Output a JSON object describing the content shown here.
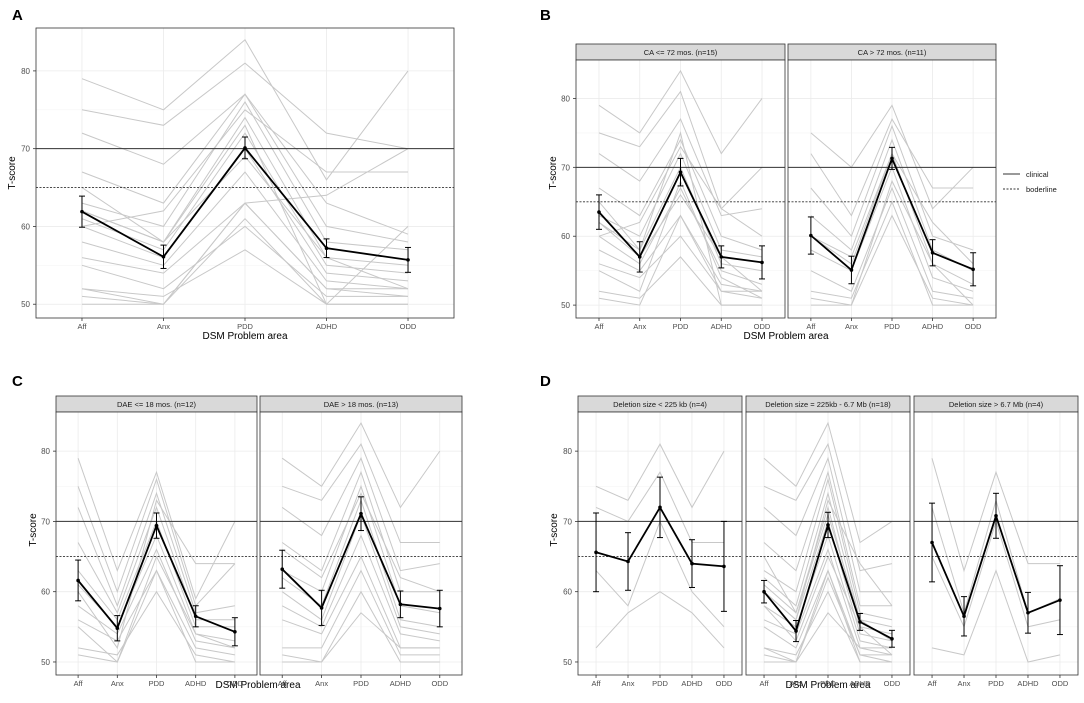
{
  "figure": {
    "x_categories": [
      "Aff",
      "Anx",
      "PDD",
      "ADHD",
      "ODD"
    ],
    "xlabel": "DSM Problem area",
    "ylabel": "T-score",
    "y_ticks": [
      50,
      60,
      70,
      80
    ],
    "ylim": [
      49,
      85
    ],
    "reference_lines": [
      {
        "name": "clinical",
        "y": 70,
        "style": "solid"
      },
      {
        "name": "boderline",
        "y": 65,
        "style": "dotted"
      }
    ],
    "legend": {
      "position": "right",
      "items": [
        "clinical",
        "boderline"
      ]
    },
    "colors": {
      "individual": "#c8c8c8",
      "mean": "#000000",
      "strip": "#d9d9d9",
      "grid": "#ebebeb"
    }
  },
  "chart_data": [
    {
      "panel": "A",
      "type": "line",
      "facets": [
        {
          "title": "",
          "mean": [
            61.9,
            56.1,
            70.1,
            57.2,
            55.7
          ],
          "error": [
            2.0,
            1.5,
            1.4,
            1.2,
            1.6
          ],
          "individuals": [
            [
              79,
              75,
              84,
              66,
              80
            ],
            [
              75,
              73,
              81,
              72,
              70
            ],
            [
              72,
              68,
              77,
              63,
              59
            ],
            [
              67,
              63,
              77,
              60,
              58
            ],
            [
              63,
              60,
              76,
              58,
              57
            ],
            [
              62,
              58,
              74,
              56,
              55
            ],
            [
              61,
              57,
              72,
              55,
              54
            ],
            [
              60,
              56,
              70,
              54,
              53
            ],
            [
              58,
              55,
              67,
              53,
              52
            ],
            [
              56,
              54,
              63,
              52,
              51
            ],
            [
              55,
              52,
              60,
              51,
              51
            ],
            [
              52,
              51,
              57,
              50,
              50
            ],
            [
              50,
              50,
              63,
              52,
              52
            ],
            [
              60,
              62,
              75,
              67,
              67
            ],
            [
              51,
              50,
              63,
              64,
              70
            ],
            [
              65,
              58,
              73,
              50,
              60
            ],
            [
              52,
              50,
              61,
              50,
              50
            ],
            [
              62,
              58,
              69,
              56,
              52
            ]
          ]
        }
      ]
    },
    {
      "panel": "B",
      "type": "line",
      "facets": [
        {
          "title": "CA <= 72 mos. (n=15)",
          "mean": [
            63.5,
            57.0,
            69.3,
            57.0,
            56.2
          ],
          "error": [
            2.5,
            2.2,
            2.0,
            1.6,
            2.4
          ],
          "individuals": [
            [
              79,
              75,
              84,
              72,
              80
            ],
            [
              75,
              73,
              81,
              64,
              70
            ],
            [
              72,
              68,
              77,
              63,
              64
            ],
            [
              67,
              63,
              74,
              60,
              58
            ],
            [
              63,
              60,
              72,
              58,
              57
            ],
            [
              62,
              58,
              70,
              56,
              55
            ],
            [
              60,
              56,
              67,
              55,
              53
            ],
            [
              58,
              55,
              63,
              53,
              52
            ],
            [
              56,
              54,
              60,
              52,
              51
            ],
            [
              52,
              51,
              57,
              50,
              50
            ],
            [
              51,
              50,
              63,
              52,
              52
            ],
            [
              65,
              58,
              75,
              50,
              50
            ],
            [
              60,
              62,
              73,
              64,
              60
            ],
            [
              55,
              52,
              68,
              54,
              51
            ],
            [
              62,
              57,
              66,
              57,
              52
            ]
          ]
        },
        {
          "title": "CA > 72 mos. (n=11)",
          "mean": [
            60.1,
            55.1,
            71.3,
            57.6,
            55.2
          ],
          "error": [
            2.7,
            2.0,
            1.6,
            1.9,
            2.4
          ],
          "individuals": [
            [
              75,
              70,
              79,
              64,
              70
            ],
            [
              72,
              63,
              77,
              67,
              67
            ],
            [
              67,
              60,
              76,
              60,
              58
            ],
            [
              63,
              58,
              74,
              58,
              55
            ],
            [
              60,
              56,
              72,
              56,
              53
            ],
            [
              58,
              55,
              70,
              54,
              52
            ],
            [
              55,
              52,
              67,
              52,
              51
            ],
            [
              52,
              51,
              65,
              50,
              50
            ],
            [
              51,
              50,
              63,
              51,
              50
            ],
            [
              60,
              57,
              72,
              62,
              56
            ],
            [
              50,
              50,
              68,
              56,
              50
            ]
          ]
        }
      ]
    },
    {
      "panel": "C",
      "type": "line",
      "facets": [
        {
          "title": "DAE <= 18 mos. (n=12)",
          "mean": [
            61.6,
            54.8,
            69.4,
            56.5,
            54.3
          ],
          "error": [
            2.9,
            1.8,
            1.8,
            1.5,
            2.0
          ],
          "individuals": [
            [
              79,
              63,
              77,
              59,
              70
            ],
            [
              75,
              60,
              76,
              58,
              64
            ],
            [
              72,
              58,
              74,
              57,
              58
            ],
            [
              67,
              57,
              72,
              56,
              56
            ],
            [
              63,
              56,
              70,
              55,
              55
            ],
            [
              61,
              55,
              68,
              54,
              53
            ],
            [
              58,
              54,
              66,
              53,
              52
            ],
            [
              56,
              53,
              63,
              52,
              51
            ],
            [
              52,
              51,
              60,
              51,
              50
            ],
            [
              51,
              50,
              63,
              50,
              50
            ],
            [
              60,
              52,
              73,
              64,
              64
            ],
            [
              55,
              50,
              65,
              54,
              52
            ]
          ]
        },
        {
          "title": "DAE > 18 mos. (n=13)",
          "mean": [
            63.2,
            57.7,
            71.1,
            58.2,
            57.6
          ],
          "error": [
            2.7,
            2.5,
            2.4,
            1.9,
            2.6
          ],
          "individuals": [
            [
              79,
              75,
              84,
              72,
              80
            ],
            [
              75,
              73,
              81,
              67,
              67
            ],
            [
              72,
              68,
              79,
              63,
              64
            ],
            [
              67,
              63,
              77,
              60,
              60
            ],
            [
              63,
              60,
              75,
              58,
              57
            ],
            [
              62,
              58,
              73,
              56,
              55
            ],
            [
              60,
              56,
              71,
              55,
              54
            ],
            [
              58,
              55,
              68,
              54,
              53
            ],
            [
              56,
              54,
              65,
              52,
              52
            ],
            [
              52,
              52,
              63,
              51,
              51
            ],
            [
              51,
              50,
              60,
              50,
              50
            ],
            [
              50,
              50,
              57,
              52,
              52
            ],
            [
              66,
              62,
              74,
              62,
              60
            ]
          ]
        }
      ]
    },
    {
      "panel": "D",
      "type": "line",
      "facets": [
        {
          "title": "Deletion size < 225 kb (n=4)",
          "mean": [
            65.6,
            64.3,
            72.0,
            64.0,
            63.6
          ],
          "error": [
            5.6,
            4.1,
            4.3,
            3.4,
            6.4
          ],
          "individuals": [
            [
              75,
              73,
              81,
              72,
              80
            ],
            [
              72,
              70,
              77,
              67,
              67
            ],
            [
              63,
              58,
              70,
              60,
              55
            ],
            [
              52,
              57,
              60,
              57,
              52
            ]
          ]
        },
        {
          "title": "Deletion size = 225kb - 6.7 Mb (n=18)",
          "mean": [
            60.0,
            54.4,
            69.5,
            55.7,
            53.3
          ],
          "error": [
            1.6,
            1.5,
            1.8,
            1.2,
            1.2
          ],
          "individuals": [
            [
              79,
              75,
              84,
              67,
              70
            ],
            [
              75,
              73,
              81,
              63,
              64
            ],
            [
              72,
              68,
              79,
              60,
              60
            ],
            [
              67,
              63,
              77,
              58,
              58
            ],
            [
              63,
              60,
              76,
              57,
              56
            ],
            [
              62,
              58,
              74,
              56,
              55
            ],
            [
              61,
              57,
              72,
              55,
              54
            ],
            [
              60,
              56,
              70,
              54,
              53
            ],
            [
              58,
              55,
              68,
              53,
              52
            ],
            [
              56,
              54,
              66,
              52,
              51
            ],
            [
              55,
              52,
              63,
              51,
              51
            ],
            [
              52,
              51,
              60,
              50,
              50
            ],
            [
              51,
              50,
              57,
              52,
              52
            ],
            [
              50,
              50,
              63,
              50,
              50
            ],
            [
              60,
              56,
              73,
              64,
              58
            ],
            [
              65,
              57,
              71,
              56,
              53
            ],
            [
              52,
              50,
              62,
              51,
              50
            ],
            [
              58,
              53,
              65,
              55,
              51
            ]
          ]
        },
        {
          "title": "Deletion size > 6.7 Mb (n=4)",
          "mean": [
            67.0,
            56.5,
            70.8,
            57.0,
            58.8
          ],
          "error": [
            5.6,
            2.8,
            3.2,
            2.9,
            4.9
          ],
          "individuals": [
            [
              79,
              63,
              77,
              64,
              64
            ],
            [
              72,
              57,
              73,
              57,
              59
            ],
            [
              65,
              55,
              70,
              55,
              56
            ],
            [
              52,
              51,
              63,
              50,
              51
            ]
          ]
        }
      ]
    }
  ]
}
